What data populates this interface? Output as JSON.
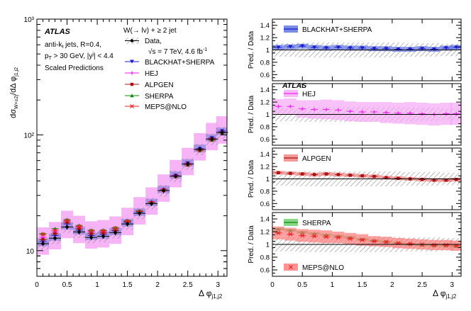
{
  "figure": {
    "left_xlabel": "Δ φ",
    "left_xlabel_sub": "j1,j2",
    "right_xlabel": "Δ φ",
    "right_xlabel_sub": "j1,j2",
    "ylabel_main": "dσ",
    "ylabel_sub1": "W+≥2j",
    "ylabel_mid": "/dΔ φ",
    "ylabel_sub2": "j1,j2",
    "ratio_ylabel": "Pred. / Data",
    "atlas_label": "ATLAS",
    "info_line1": "anti-k",
    "info_line1_sub": "t",
    "info_line1_rest": " jets, R=0.4,",
    "info_line2_pre": "p",
    "info_line2_sub": "T",
    "info_line2_rest": " > 30 GeV, |y",
    "info_line2_sup": "j",
    "info_line2_end": "| < 4.4",
    "info_line3": "Scaled Predictions",
    "legend_title": "W(→ lν) + ≥ 2 jet",
    "legend_data": "Data,",
    "legend_energy": "√s = 7 TeV, 4.6 fb",
    "legend_energy_sup": "-1",
    "ratio_atlas_label": "ATLAS",
    "colors": {
      "data": "#000000",
      "blackhat": "#1a1acc",
      "blackhat_band": "#5a6fe0",
      "hej": "#ee22ee",
      "hej_band": "#f5a6f5",
      "alpgen": "#aa1111",
      "alpgen_band": "#f08080",
      "sherpa": "#118811",
      "sherpa_band": "#66cc66",
      "meps": "#ee2222",
      "meps_band": "#ff7777",
      "hatch": "#888888"
    }
  },
  "chart_data": [
    {
      "type": "scatter",
      "panel": "main",
      "title": "",
      "xlabel": "Δ φ j1,j2",
      "ylabel": "dσ W+≥2j / dΔ φ j1,j2",
      "xlim": [
        0,
        3.15
      ],
      "ylim": [
        6,
        1000
      ],
      "yscale": "log",
      "xticks": [
        "0",
        "0.5",
        "1",
        "1.5",
        "2",
        "2.5",
        "3"
      ],
      "yticks": [
        "10",
        "10²",
        "10³"
      ],
      "x": [
        0.1,
        0.3,
        0.5,
        0.7,
        0.9,
        1.1,
        1.3,
        1.5,
        1.7,
        1.9,
        2.1,
        2.3,
        2.5,
        2.7,
        2.9,
        3.07
      ],
      "series": [
        {
          "name": "Data",
          "values": [
            11.5,
            12.8,
            16.0,
            14.5,
            13.0,
            13.3,
            14.3,
            17.0,
            21.0,
            25.5,
            33.0,
            44.0,
            56.0,
            75.0,
            92.0,
            105.0
          ]
        },
        {
          "name": "BLACKHAT+SHERPA",
          "values": [
            12.0,
            13.5,
            17.0,
            15.0,
            13.5,
            13.8,
            14.8,
            17.5,
            21.5,
            26.0,
            33.5,
            44.5,
            57.0,
            76.0,
            94.0,
            108.0
          ]
        },
        {
          "name": "HEJ",
          "values": [
            13.0,
            14.5,
            18.0,
            16.0,
            14.5,
            14.5,
            15.5,
            18.0,
            22.0,
            26.5,
            34.0,
            45.0,
            57.0,
            75.0,
            93.0,
            106.0
          ]
        },
        {
          "name": "ALPGEN",
          "values": [
            12.5,
            14.0,
            17.5,
            15.5,
            14.0,
            14.2,
            15.0,
            17.8,
            21.8,
            26.0,
            33.5,
            44.0,
            56.0,
            74.0,
            92.0,
            105.0
          ]
        },
        {
          "name": "SHERPA",
          "values": [
            14.0,
            15.5,
            18.5,
            16.5,
            15.0,
            15.0,
            15.8,
            18.2,
            22.0,
            26.2,
            33.5,
            44.0,
            55.0,
            73.0,
            90.0,
            104.0
          ]
        },
        {
          "name": "MEPS@NLO",
          "values": [
            13.8,
            15.0,
            18.2,
            16.2,
            14.8,
            14.8,
            15.6,
            18.0,
            21.8,
            26.0,
            33.2,
            43.8,
            55.0,
            73.5,
            91.0,
            105.0
          ]
        }
      ]
    },
    {
      "type": "line",
      "panel": "ratio",
      "ylabel": "Pred. / Data",
      "xlim": [
        0,
        3.15
      ],
      "ylim": [
        0.5,
        1.5
      ],
      "yticks": [
        "0.6",
        "0.8",
        "1",
        "1.2",
        "1.4"
      ],
      "x": [
        0.1,
        0.3,
        0.5,
        0.7,
        0.9,
        1.1,
        1.3,
        1.5,
        1.7,
        1.9,
        2.1,
        2.3,
        2.5,
        2.7,
        2.9,
        3.07
      ],
      "data_uncertainty": [
        0.11,
        0.11,
        0.12,
        0.12,
        0.12,
        0.12,
        0.12,
        0.12,
        0.12,
        0.12,
        0.12,
        0.11,
        0.11,
        0.11,
        0.1,
        0.1
      ],
      "series": [
        {
          "name": "BLACKHAT+SHERPA",
          "values": [
            1.04,
            1.05,
            1.06,
            1.04,
            1.03,
            1.04,
            1.03,
            1.03,
            1.02,
            1.02,
            1.01,
            1.01,
            1.02,
            1.01,
            1.03,
            1.04
          ],
          "band": [
            0.04,
            0.04,
            0.04,
            0.04,
            0.04,
            0.04,
            0.04,
            0.04,
            0.04,
            0.04,
            0.04,
            0.04,
            0.04,
            0.04,
            0.04,
            0.04
          ]
        },
        {
          "name": "HEJ",
          "values": [
            1.13,
            1.13,
            1.09,
            1.08,
            1.08,
            1.07,
            1.05,
            1.04,
            1.04,
            1.03,
            1.02,
            1.02,
            1.01,
            1.0,
            1.01,
            1.01
          ],
          "band": [
            0.12,
            0.13,
            0.14,
            0.15,
            0.16,
            0.16,
            0.16,
            0.16,
            0.16,
            0.17,
            0.17,
            0.18,
            0.18,
            0.18,
            0.18,
            0.18
          ]
        },
        {
          "name": "ALPGEN",
          "values": [
            1.1,
            1.09,
            1.08,
            1.07,
            1.08,
            1.07,
            1.06,
            1.05,
            1.04,
            1.02,
            1.01,
            1.0,
            0.99,
            0.98,
            0.98,
            0.99
          ],
          "band": [
            0.03,
            0.03,
            0.03,
            0.03,
            0.03,
            0.03,
            0.03,
            0.03,
            0.03,
            0.03,
            0.03,
            0.03,
            0.03,
            0.03,
            0.03,
            0.03
          ]
        },
        {
          "name": "SHERPA",
          "values": [
            1.24,
            1.22,
            1.19,
            1.17,
            1.15,
            1.13,
            1.11,
            1.08,
            1.06,
            1.04,
            1.02,
            1.0,
            0.99,
            0.98,
            0.98,
            0.97
          ],
          "band": [
            0.02,
            0.02,
            0.02,
            0.02,
            0.02,
            0.02,
            0.02,
            0.02,
            0.02,
            0.02,
            0.02,
            0.02,
            0.02,
            0.02,
            0.02,
            0.02
          ]
        },
        {
          "name": "MEPS@NLO",
          "values": [
            1.18,
            1.16,
            1.14,
            1.13,
            1.12,
            1.11,
            1.09,
            1.07,
            1.05,
            1.04,
            1.02,
            1.01,
            1.0,
            0.99,
            0.99,
            0.98
          ],
          "band": [
            0.1,
            0.1,
            0.1,
            0.1,
            0.1,
            0.09,
            0.09,
            0.09,
            0.08,
            0.08,
            0.08,
            0.08,
            0.08,
            0.08,
            0.08,
            0.08
          ]
        }
      ]
    }
  ]
}
